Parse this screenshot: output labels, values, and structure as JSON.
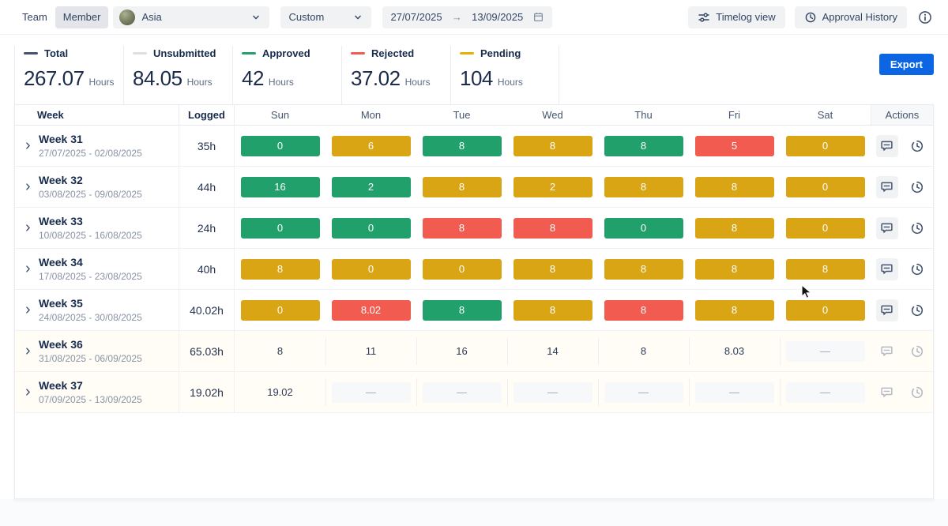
{
  "topbar": {
    "team_label": "Team",
    "member_label": "Member",
    "user_name": "Asia",
    "range_preset": "Custom",
    "date_from": "27/07/2025",
    "date_to": "13/09/2025",
    "timelog_view_label": "Timelog view",
    "approval_history_label": "Approval History"
  },
  "summary": {
    "hours_unit": "Hours",
    "export_label": "Export",
    "export_color": "#0C66E4",
    "stats": [
      {
        "label": "Total",
        "value": "267.07",
        "color": "#44546F"
      },
      {
        "label": "Unsubmitted",
        "value": "84.05",
        "color": "#DCDFE4"
      },
      {
        "label": "Approved",
        "value": "42",
        "color": "#22A06B"
      },
      {
        "label": "Rejected",
        "value": "37.02",
        "color": "#F15B50"
      },
      {
        "label": "Pending",
        "value": "104",
        "color": "#E2B203"
      }
    ]
  },
  "table": {
    "col_week": "Week",
    "col_logged": "Logged",
    "day_headers": [
      "Sun",
      "Mon",
      "Tue",
      "Wed",
      "Thu",
      "Fri",
      "Sat"
    ],
    "col_actions": "Actions",
    "status_colors": {
      "approved": "#22A06B",
      "pending": "#D9A514",
      "rejected": "#F15B50"
    },
    "rows": [
      {
        "week": "Week 31",
        "dates": "27/07/2025 - 02/08/2025",
        "logged": "35h",
        "muted": false,
        "days": [
          {
            "value": "0",
            "status": "approved"
          },
          {
            "value": "6",
            "status": "pending"
          },
          {
            "value": "8",
            "status": "approved"
          },
          {
            "value": "8",
            "status": "pending"
          },
          {
            "value": "8",
            "status": "approved"
          },
          {
            "value": "5",
            "status": "rejected"
          },
          {
            "value": "0",
            "status": "pending"
          }
        ]
      },
      {
        "week": "Week 32",
        "dates": "03/08/2025 - 09/08/2025",
        "logged": "44h",
        "muted": false,
        "days": [
          {
            "value": "16",
            "status": "approved"
          },
          {
            "value": "2",
            "status": "approved"
          },
          {
            "value": "8",
            "status": "pending"
          },
          {
            "value": "2",
            "status": "pending"
          },
          {
            "value": "8",
            "status": "pending"
          },
          {
            "value": "8",
            "status": "pending"
          },
          {
            "value": "0",
            "status": "pending"
          }
        ]
      },
      {
        "week": "Week 33",
        "dates": "10/08/2025 - 16/08/2025",
        "logged": "24h",
        "muted": false,
        "days": [
          {
            "value": "0",
            "status": "approved"
          },
          {
            "value": "0",
            "status": "approved"
          },
          {
            "value": "8",
            "status": "rejected"
          },
          {
            "value": "8",
            "status": "rejected"
          },
          {
            "value": "0",
            "status": "approved"
          },
          {
            "value": "8",
            "status": "pending"
          },
          {
            "value": "0",
            "status": "pending"
          }
        ]
      },
      {
        "week": "Week 34",
        "dates": "17/08/2025 - 23/08/2025",
        "logged": "40h",
        "muted": false,
        "days": [
          {
            "value": "8",
            "status": "pending"
          },
          {
            "value": "0",
            "status": "pending"
          },
          {
            "value": "0",
            "status": "pending"
          },
          {
            "value": "8",
            "status": "pending"
          },
          {
            "value": "8",
            "status": "pending"
          },
          {
            "value": "8",
            "status": "pending"
          },
          {
            "value": "8",
            "status": "pending"
          }
        ]
      },
      {
        "week": "Week 35",
        "dates": "24/08/2025 - 30/08/2025",
        "logged": "40.02h",
        "muted": false,
        "days": [
          {
            "value": "0",
            "status": "pending"
          },
          {
            "value": "8.02",
            "status": "rejected"
          },
          {
            "value": "8",
            "status": "approved"
          },
          {
            "value": "8",
            "status": "pending"
          },
          {
            "value": "8",
            "status": "rejected"
          },
          {
            "value": "8",
            "status": "pending"
          },
          {
            "value": "0",
            "status": "pending"
          }
        ]
      },
      {
        "week": "Week 36",
        "dates": "31/08/2025 - 06/09/2025",
        "logged": "65.03h",
        "muted": true,
        "days": [
          {
            "value": "8",
            "status": "unsubmitted"
          },
          {
            "value": "11",
            "status": "unsubmitted"
          },
          {
            "value": "16",
            "status": "unsubmitted"
          },
          {
            "value": "14",
            "status": "unsubmitted"
          },
          {
            "value": "8",
            "status": "unsubmitted"
          },
          {
            "value": "8.03",
            "status": "unsubmitted"
          },
          {
            "value": "—",
            "status": "empty"
          }
        ]
      },
      {
        "week": "Week 37",
        "dates": "07/09/2025 - 13/09/2025",
        "logged": "19.02h",
        "muted": true,
        "days": [
          {
            "value": "19.02",
            "status": "unsubmitted"
          },
          {
            "value": "—",
            "status": "empty"
          },
          {
            "value": "—",
            "status": "empty"
          },
          {
            "value": "—",
            "status": "empty"
          },
          {
            "value": "—",
            "status": "empty"
          },
          {
            "value": "—",
            "status": "empty"
          },
          {
            "value": "—",
            "status": "empty"
          }
        ]
      }
    ]
  }
}
